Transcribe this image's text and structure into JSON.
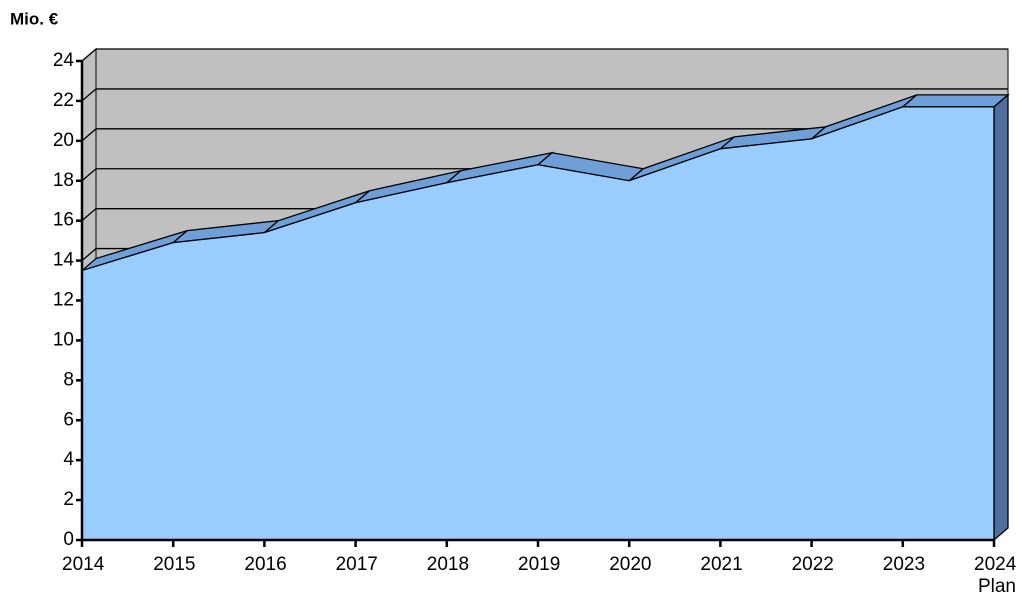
{
  "chart_data": {
    "type": "area3d",
    "title": "Mio. €",
    "categories": [
      "2014",
      "2015",
      "2016",
      "2017",
      "2018",
      "2019",
      "2020",
      "2021",
      "2022",
      "2023",
      "2024\nPlan"
    ],
    "values": [
      13.5,
      14.9,
      15.4,
      16.9,
      17.9,
      18.8,
      18.0,
      19.6,
      20.1,
      21.7,
      21.7
    ],
    "color": "#99ccff",
    "ylim": [
      0,
      24
    ],
    "yticks": [
      0,
      2,
      4,
      6,
      8,
      10,
      12,
      14,
      16,
      18,
      20,
      22,
      24
    ],
    "grid": true
  }
}
